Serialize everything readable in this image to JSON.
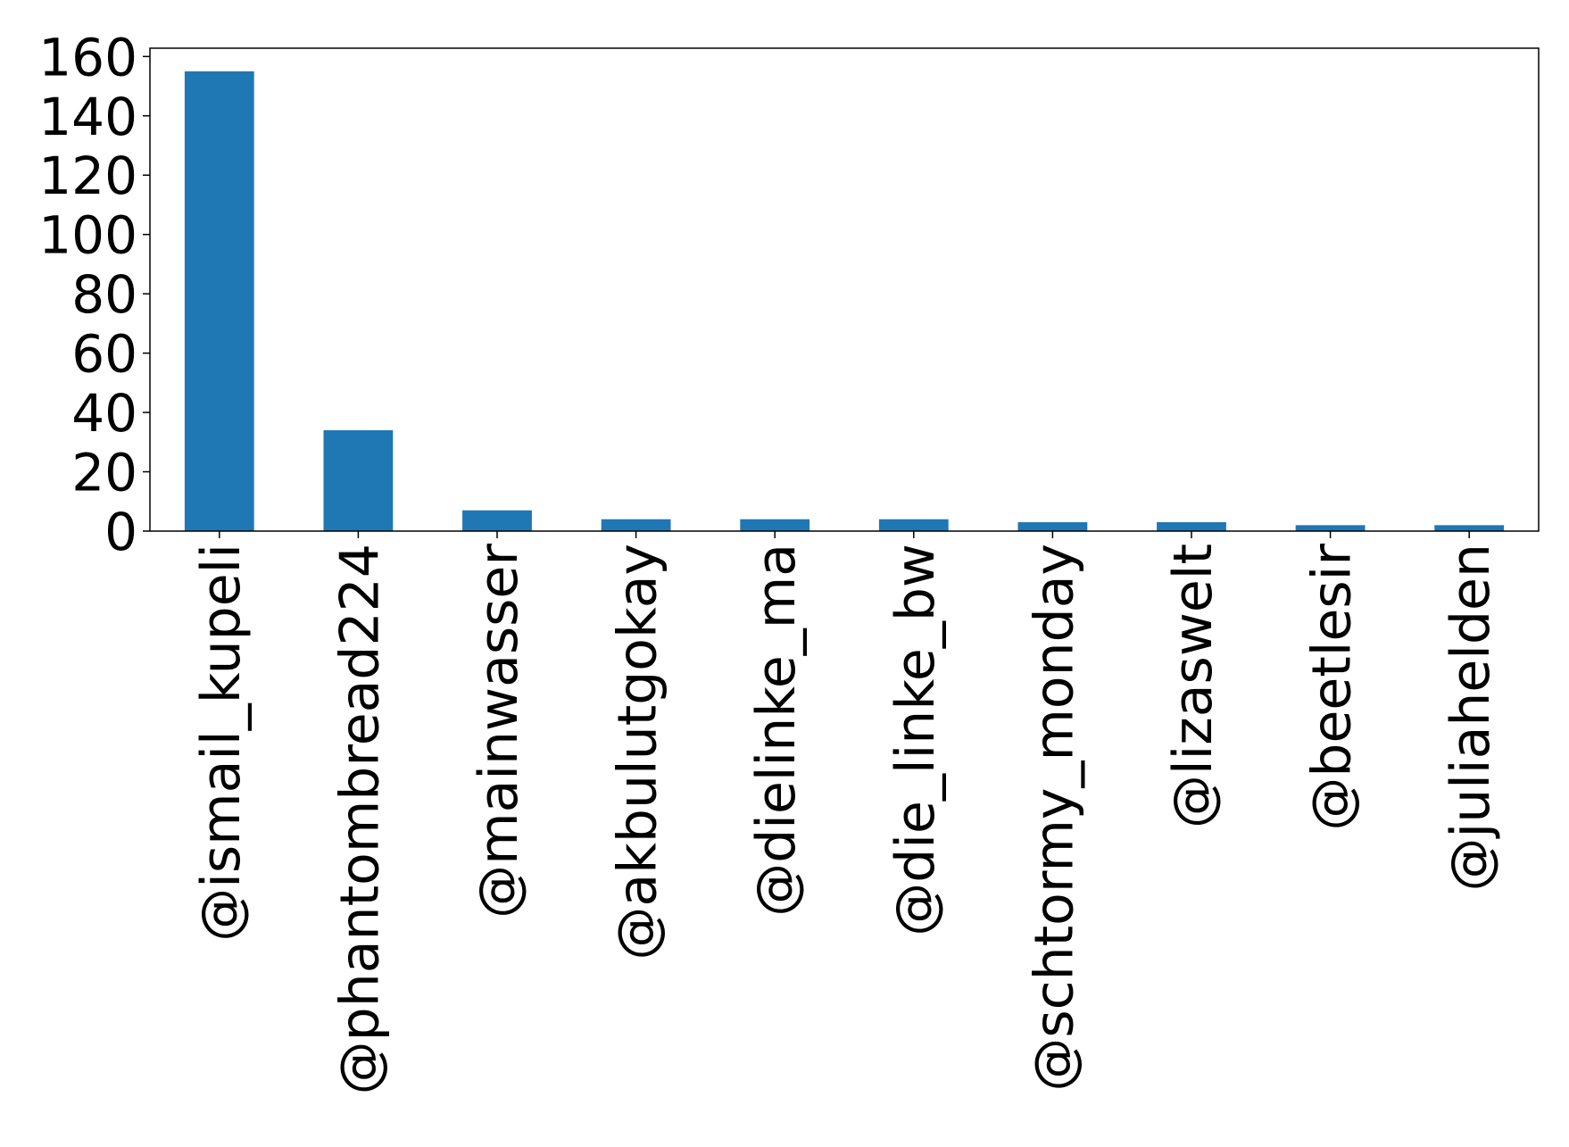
{
  "chart_data": {
    "type": "bar",
    "title": "",
    "xlabel": "",
    "ylabel": "",
    "categories": [
      "@ismail_kupeli",
      "@phantombread224",
      "@mainwasser",
      "@akbulutgokay",
      "@dielinke_ma",
      "@die_linke_bw",
      "@schtormy_monday",
      "@lizaswelt",
      "@beetlesir",
      "@juliahelden"
    ],
    "values": [
      155,
      34,
      7,
      4,
      4,
      4,
      3,
      3,
      2,
      2
    ],
    "ylim": [
      0,
      162.8
    ],
    "yticks": [
      0,
      20,
      40,
      60,
      80,
      100,
      120,
      140,
      160
    ],
    "grid": false,
    "legend": "none",
    "bar_color": "#1f77b4"
  }
}
